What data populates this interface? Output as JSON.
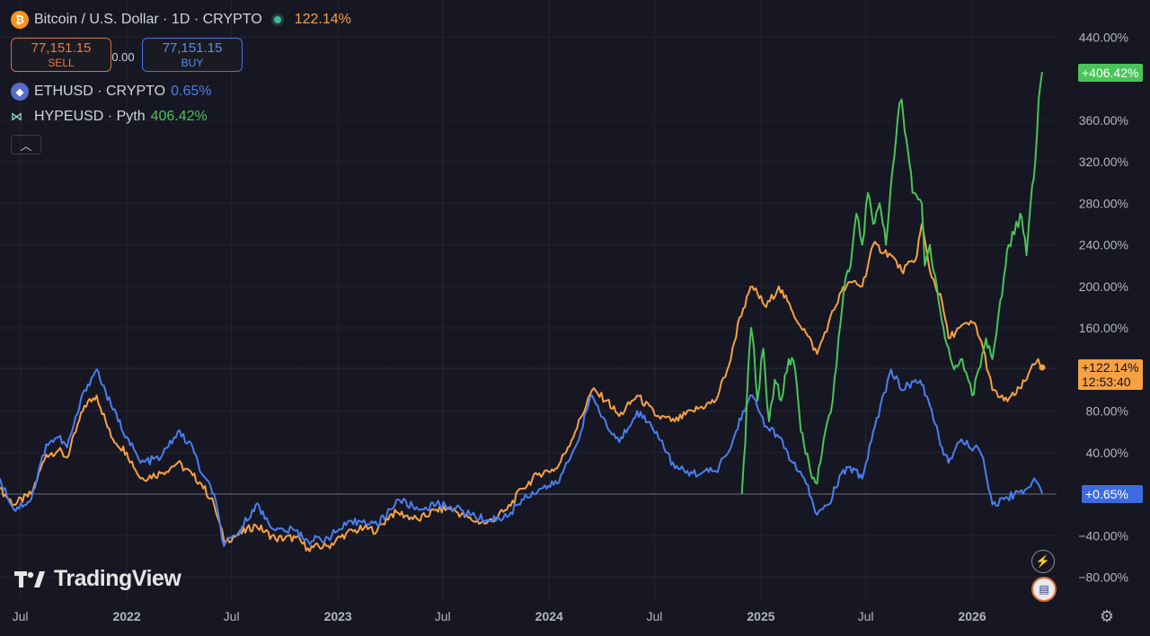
{
  "header": {
    "symbol_title": "Bitcoin / U.S. Dollar · 1D · CRYPTO",
    "symbol_change": "122.14%",
    "btc_icon": "bitcoin-icon",
    "sell_price": "77,151.15",
    "sell_label": "SELL",
    "spread": "0.00",
    "buy_price": "77,151.15",
    "buy_label": "BUY",
    "collapse_icon": "chevron-up-icon"
  },
  "legend": [
    {
      "name": "ETHUSD · CRYPTO",
      "change": "0.65%",
      "icon": "ethereum-icon"
    },
    {
      "name": "HYPEUSD · Pyth",
      "change": "406.42%",
      "icon": "hype-icon"
    }
  ],
  "logo_text": "TradingView",
  "colors": {
    "btc": "#f7a145",
    "eth": "#4a7ef0",
    "hype": "#4ac45a",
    "background": "#161722",
    "grid": "#232531"
  },
  "price_tags": {
    "btc_value": "+122.14%",
    "btc_countdown": "12:53:40",
    "eth_value": "+0.65%",
    "hype_value": "+406.42%"
  },
  "chart_data": {
    "type": "line",
    "y_unit": "percent change",
    "y_ticks": [
      "440.00%",
      "360.00%",
      "320.00%",
      "280.00%",
      "240.00%",
      "200.00%",
      "160.00%",
      "80.00%",
      "40.00%",
      "−40.00%",
      "−80.00%"
    ],
    "y_tick_values": [
      440,
      360,
      320,
      280,
      240,
      200,
      160,
      80,
      40,
      -40,
      -80
    ],
    "ylim": [
      -95,
      455
    ],
    "x_ticks": [
      "Jul",
      "2022",
      "Jul",
      "2023",
      "Jul",
      "2024",
      "Jul",
      "2025",
      "Jul",
      "2026"
    ],
    "x_tick_values": [
      "2021-07-01",
      "2022-01-01",
      "2022-07-01",
      "2023-01-01",
      "2023-07-01",
      "2024-01-01",
      "2024-07-01",
      "2025-01-01",
      "2025-07-01",
      "2026-01-01"
    ],
    "xlim": [
      "2021-05-27",
      "2026-05-02"
    ],
    "series": [
      {
        "name": "Bitcoin / U.S. Dollar",
        "points": [
          [
            "2021-05-27",
            5
          ],
          [
            "2021-06-20",
            -10
          ],
          [
            "2021-07-20",
            0
          ],
          [
            "2021-08-15",
            38
          ],
          [
            "2021-09-05",
            42
          ],
          [
            "2021-09-20",
            35
          ],
          [
            "2021-10-20",
            85
          ],
          [
            "2021-11-10",
            95
          ],
          [
            "2021-12-05",
            55
          ],
          [
            "2022-01-01",
            40
          ],
          [
            "2022-01-25",
            15
          ],
          [
            "2022-03-01",
            20
          ],
          [
            "2022-03-30",
            30
          ],
          [
            "2022-04-25",
            18
          ],
          [
            "2022-05-10",
            10
          ],
          [
            "2022-06-01",
            -10
          ],
          [
            "2022-06-18",
            -45
          ],
          [
            "2022-07-10",
            -40
          ],
          [
            "2022-08-12",
            -30
          ],
          [
            "2022-09-15",
            -43
          ],
          [
            "2022-10-20",
            -42
          ],
          [
            "2022-11-10",
            -52
          ],
          [
            "2022-12-15",
            -50
          ],
          [
            "2023-01-15",
            -38
          ],
          [
            "2023-02-15",
            -33
          ],
          [
            "2023-03-10",
            -35
          ],
          [
            "2023-04-01",
            -20
          ],
          [
            "2023-04-15",
            -18
          ],
          [
            "2023-05-20",
            -25
          ],
          [
            "2023-06-20",
            -15
          ],
          [
            "2023-07-15",
            -14
          ],
          [
            "2023-08-20",
            -25
          ],
          [
            "2023-09-15",
            -28
          ],
          [
            "2023-10-20",
            -15
          ],
          [
            "2023-11-15",
            5
          ],
          [
            "2023-12-15",
            20
          ],
          [
            "2024-01-15",
            25
          ],
          [
            "2024-02-15",
            60
          ],
          [
            "2024-03-15",
            100
          ],
          [
            "2024-04-10",
            90
          ],
          [
            "2024-05-01",
            75
          ],
          [
            "2024-06-01",
            95
          ],
          [
            "2024-07-05",
            75
          ],
          [
            "2024-08-05",
            70
          ],
          [
            "2024-09-05",
            80
          ],
          [
            "2024-10-15",
            90
          ],
          [
            "2024-11-10",
            130
          ],
          [
            "2024-11-25",
            170
          ],
          [
            "2024-12-17",
            200
          ],
          [
            "2025-01-10",
            180
          ],
          [
            "2025-02-01",
            200
          ],
          [
            "2025-02-25",
            175
          ],
          [
            "2025-03-20",
            155
          ],
          [
            "2025-04-08",
            135
          ],
          [
            "2025-04-28",
            165
          ],
          [
            "2025-05-20",
            195
          ],
          [
            "2025-06-10",
            205
          ],
          [
            "2025-06-25",
            200
          ],
          [
            "2025-07-14",
            240
          ],
          [
            "2025-08-14",
            230
          ],
          [
            "2025-09-01",
            215
          ],
          [
            "2025-09-25",
            225
          ],
          [
            "2025-10-06",
            260
          ],
          [
            "2025-10-20",
            215
          ],
          [
            "2025-11-10",
            185
          ],
          [
            "2025-11-21",
            150
          ],
          [
            "2025-12-10",
            160
          ],
          [
            "2026-01-05",
            165
          ],
          [
            "2026-01-20",
            140
          ],
          [
            "2026-02-05",
            100
          ],
          [
            "2026-02-25",
            90
          ],
          [
            "2026-03-15",
            95
          ],
          [
            "2026-04-05",
            110
          ],
          [
            "2026-04-15",
            125
          ],
          [
            "2026-04-25",
            130
          ],
          [
            "2026-05-02",
            122
          ]
        ]
      },
      {
        "name": "ETHUSD · CRYPTO",
        "points": [
          [
            "2021-05-27",
            15
          ],
          [
            "2021-06-20",
            -15
          ],
          [
            "2021-07-20",
            -5
          ],
          [
            "2021-08-15",
            48
          ],
          [
            "2021-09-05",
            55
          ],
          [
            "2021-09-20",
            45
          ],
          [
            "2021-10-20",
            100
          ],
          [
            "2021-11-10",
            120
          ],
          [
            "2021-12-05",
            85
          ],
          [
            "2022-01-01",
            55
          ],
          [
            "2022-01-25",
            30
          ],
          [
            "2022-03-01",
            35
          ],
          [
            "2022-03-30",
            60
          ],
          [
            "2022-04-25",
            45
          ],
          [
            "2022-05-10",
            20
          ],
          [
            "2022-06-01",
            0
          ],
          [
            "2022-06-18",
            -50
          ],
          [
            "2022-07-10",
            -40
          ],
          [
            "2022-08-12",
            -10
          ],
          [
            "2022-09-15",
            -35
          ],
          [
            "2022-10-20",
            -35
          ],
          [
            "2022-11-10",
            -45
          ],
          [
            "2022-12-15",
            -42
          ],
          [
            "2023-01-15",
            -30
          ],
          [
            "2023-02-15",
            -25
          ],
          [
            "2023-03-10",
            -30
          ],
          [
            "2023-04-01",
            -15
          ],
          [
            "2023-04-15",
            -5
          ],
          [
            "2023-05-20",
            -15
          ],
          [
            "2023-06-20",
            -10
          ],
          [
            "2023-07-15",
            -12
          ],
          [
            "2023-08-20",
            -20
          ],
          [
            "2023-09-15",
            -25
          ],
          [
            "2023-10-20",
            -22
          ],
          [
            "2023-11-15",
            -5
          ],
          [
            "2023-12-15",
            5
          ],
          [
            "2024-01-15",
            10
          ],
          [
            "2024-02-15",
            45
          ],
          [
            "2024-03-15",
            95
          ],
          [
            "2024-04-10",
            65
          ],
          [
            "2024-05-01",
            50
          ],
          [
            "2024-06-01",
            80
          ],
          [
            "2024-07-05",
            60
          ],
          [
            "2024-08-05",
            25
          ],
          [
            "2024-09-05",
            20
          ],
          [
            "2024-10-15",
            22
          ],
          [
            "2024-11-10",
            45
          ],
          [
            "2024-12-01",
            80
          ],
          [
            "2024-12-17",
            95
          ],
          [
            "2025-01-10",
            65
          ],
          [
            "2025-02-01",
            55
          ],
          [
            "2025-02-25",
            30
          ],
          [
            "2025-03-20",
            10
          ],
          [
            "2025-04-08",
            -20
          ],
          [
            "2025-04-28",
            -10
          ],
          [
            "2025-05-20",
            20
          ],
          [
            "2025-06-10",
            25
          ],
          [
            "2025-06-25",
            15
          ],
          [
            "2025-07-14",
            60
          ],
          [
            "2025-08-14",
            120
          ],
          [
            "2025-09-01",
            100
          ],
          [
            "2025-09-25",
            110
          ],
          [
            "2025-10-06",
            105
          ],
          [
            "2025-10-20",
            85
          ],
          [
            "2025-11-10",
            45
          ],
          [
            "2025-11-21",
            30
          ],
          [
            "2025-12-10",
            50
          ],
          [
            "2026-01-05",
            45
          ],
          [
            "2026-01-20",
            35
          ],
          [
            "2026-02-05",
            -10
          ],
          [
            "2026-02-25",
            -5
          ],
          [
            "2026-03-15",
            0
          ],
          [
            "2026-04-05",
            5
          ],
          [
            "2026-04-15",
            12
          ],
          [
            "2026-04-25",
            10
          ],
          [
            "2026-05-02",
            0.65
          ]
        ]
      },
      {
        "name": "HYPEUSD · Pyth",
        "points": [
          [
            "2024-11-29",
            0
          ],
          [
            "2024-12-05",
            50
          ],
          [
            "2024-12-10",
            120
          ],
          [
            "2024-12-15",
            160
          ],
          [
            "2024-12-20",
            140
          ],
          [
            "2024-12-26",
            90
          ],
          [
            "2025-01-05",
            140
          ],
          [
            "2025-01-15",
            70
          ],
          [
            "2025-01-25",
            110
          ],
          [
            "2025-02-05",
            90
          ],
          [
            "2025-02-18",
            130
          ],
          [
            "2025-03-01",
            120
          ],
          [
            "2025-03-11",
            60
          ],
          [
            "2025-03-25",
            30
          ],
          [
            "2025-04-08",
            10
          ],
          [
            "2025-04-22",
            60
          ],
          [
            "2025-05-05",
            90
          ],
          [
            "2025-05-15",
            150
          ],
          [
            "2025-05-25",
            200
          ],
          [
            "2025-06-05",
            220
          ],
          [
            "2025-06-15",
            270
          ],
          [
            "2025-06-25",
            240
          ],
          [
            "2025-07-05",
            290
          ],
          [
            "2025-07-14",
            260
          ],
          [
            "2025-07-25",
            280
          ],
          [
            "2025-08-05",
            240
          ],
          [
            "2025-08-14",
            300
          ],
          [
            "2025-08-25",
            360
          ],
          [
            "2025-09-01",
            380
          ],
          [
            "2025-09-12",
            330
          ],
          [
            "2025-09-20",
            290
          ],
          [
            "2025-10-06",
            280
          ],
          [
            "2025-10-11",
            220
          ],
          [
            "2025-10-20",
            240
          ],
          [
            "2025-11-01",
            200
          ],
          [
            "2025-11-15",
            150
          ],
          [
            "2025-12-01",
            120
          ],
          [
            "2025-12-15",
            130
          ],
          [
            "2026-01-01",
            95
          ],
          [
            "2026-01-12",
            120
          ],
          [
            "2026-01-25",
            150
          ],
          [
            "2026-02-05",
            130
          ],
          [
            "2026-02-15",
            170
          ],
          [
            "2026-02-25",
            210
          ],
          [
            "2026-03-05",
            240
          ],
          [
            "2026-03-15",
            250
          ],
          [
            "2026-03-25",
            270
          ],
          [
            "2026-04-05",
            230
          ],
          [
            "2026-04-12",
            280
          ],
          [
            "2026-04-20",
            320
          ],
          [
            "2026-04-26",
            380
          ],
          [
            "2026-05-02",
            406.42
          ]
        ]
      }
    ]
  }
}
